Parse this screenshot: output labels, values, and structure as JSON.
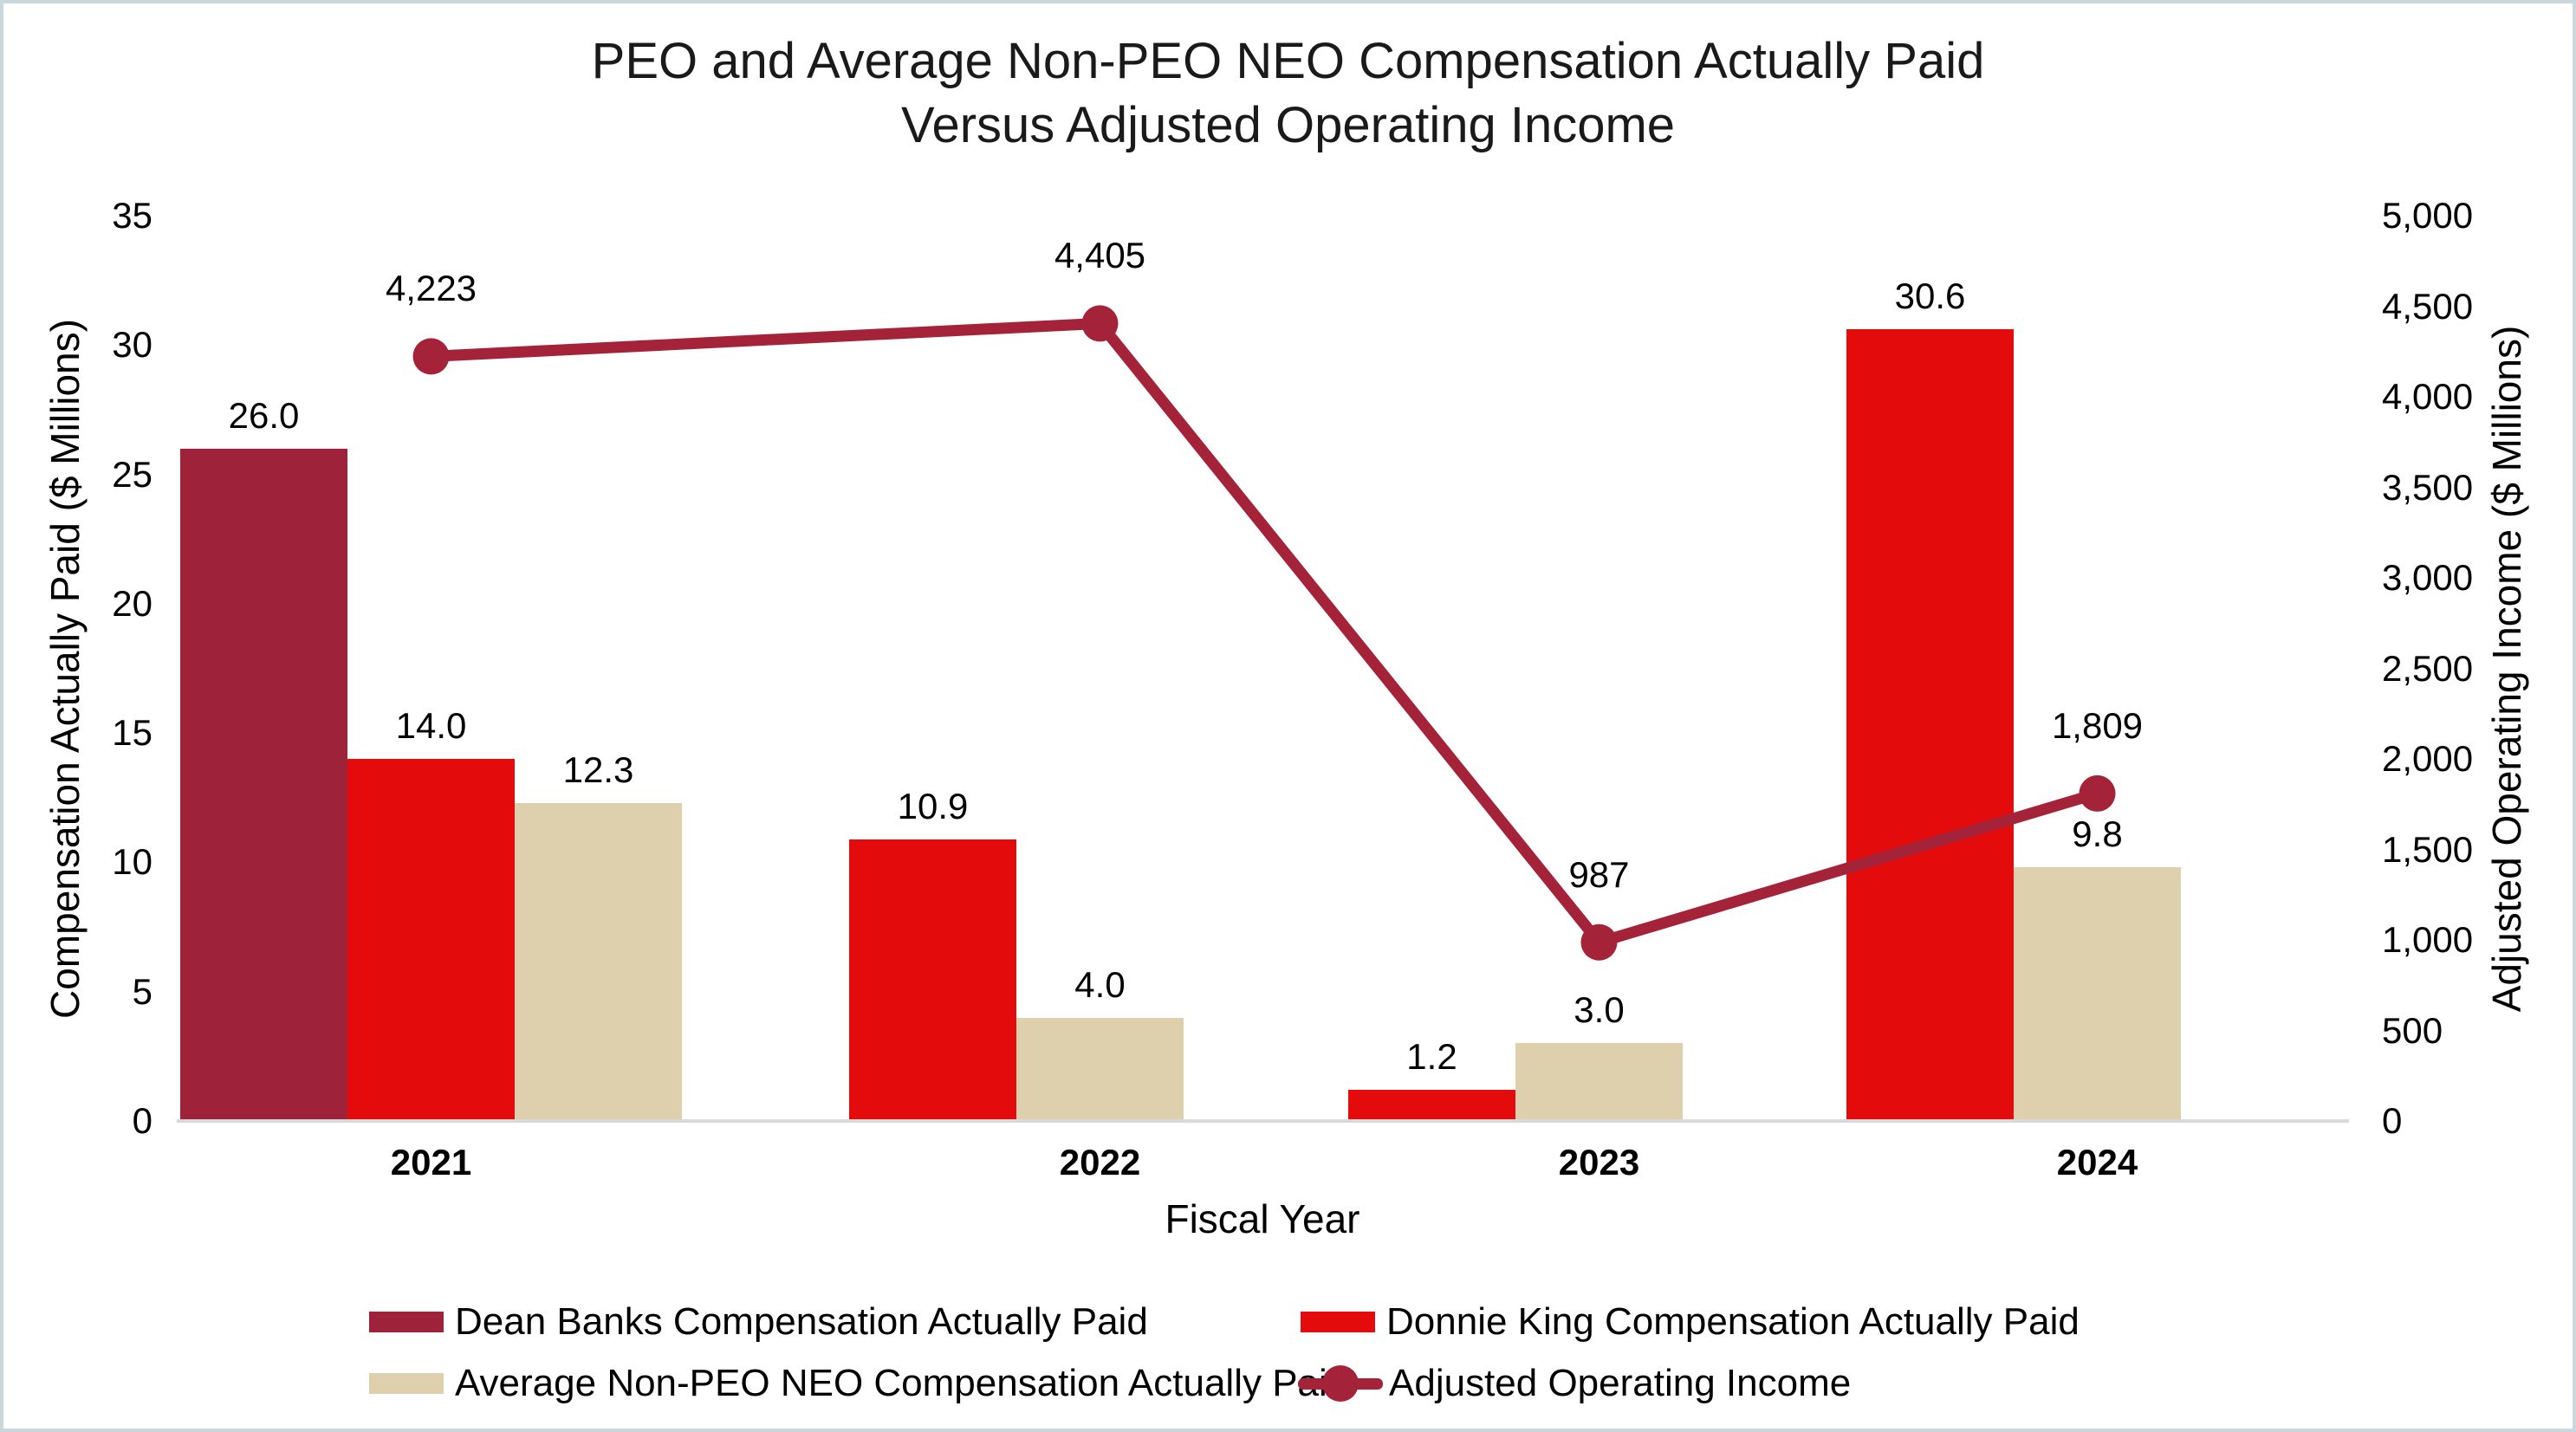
{
  "title": {
    "line1": "PEO and Average Non-PEO NEO Compensation Actually Paid",
    "line2": "Versus Adjusted Operating Income"
  },
  "chart_data": {
    "type": "bar+line combo, dual axis",
    "categories": [
      "2021",
      "2022",
      "2023",
      "2024"
    ],
    "x_axis_title": "Fiscal Year",
    "left_axis": {
      "title": "Compensation Actually Paid ($ Millions)",
      "min": 0,
      "max": 35,
      "ticks": [
        0,
        5,
        10,
        15,
        20,
        25,
        30,
        35
      ],
      "tick_labels": [
        "0",
        "5",
        "10",
        "15",
        "20",
        "25",
        "30",
        "35"
      ]
    },
    "right_axis": {
      "title": "Adjusted Operating Income ($ Millions)",
      "min": 0,
      "max": 5000,
      "ticks": [
        0,
        500,
        1000,
        1500,
        2000,
        2500,
        3000,
        3500,
        4000,
        4500,
        5000
      ],
      "tick_labels": [
        "0",
        "500",
        "1,000",
        "1,500",
        "2,000",
        "2,500",
        "3,000",
        "3,500",
        "4,000",
        "4,500",
        "5,000"
      ]
    },
    "bar_series": [
      {
        "key": "dean-banks",
        "name": "Dean Banks Compensation Actually Paid",
        "color": "#9E2239",
        "values": [
          26.0,
          null,
          null,
          null
        ],
        "labels": [
          "26.0",
          null,
          null,
          null
        ]
      },
      {
        "key": "donnie-king",
        "name": "Donnie King Compensation Actually Paid",
        "color": "#E30B0C",
        "values": [
          14.0,
          10.9,
          1.2,
          30.6
        ],
        "labels": [
          "14.0",
          "10.9",
          "1.2",
          "30.6"
        ]
      },
      {
        "key": "avg-non-peo-neo",
        "name": "Average Non-PEO NEO Compensation Actually Paid",
        "color": "#DED0AC",
        "values": [
          12.3,
          4.0,
          3.0,
          9.8
        ],
        "labels": [
          "12.3",
          "4.0",
          "3.0",
          "9.8"
        ]
      }
    ],
    "line_series": {
      "key": "adjusted-operating-income",
      "name": "Adjusted Operating Income",
      "color": "#A42339",
      "values": [
        4223,
        4405,
        987,
        1809
      ],
      "labels": [
        "4,223",
        "4,405",
        "987",
        "1,809"
      ]
    },
    "grid": "off",
    "legend_position": "bottom"
  },
  "legend": {
    "items": [
      {
        "type": "swatch",
        "color": "#9E2239",
        "label": "Dean Banks Compensation Actually Paid"
      },
      {
        "type": "swatch",
        "color": "#E30B0C",
        "label": "Donnie King Compensation Actually Paid"
      },
      {
        "type": "swatch",
        "color": "#DED0AC",
        "label": "Average Non-PEO NEO Compensation Actually Paid"
      },
      {
        "type": "line",
        "color": "#A42339",
        "label": "Adjusted Operating Income"
      }
    ]
  },
  "colors": {
    "border": "#C9D8DC",
    "axis_line": "#D9D9D9",
    "text": "#000000"
  }
}
